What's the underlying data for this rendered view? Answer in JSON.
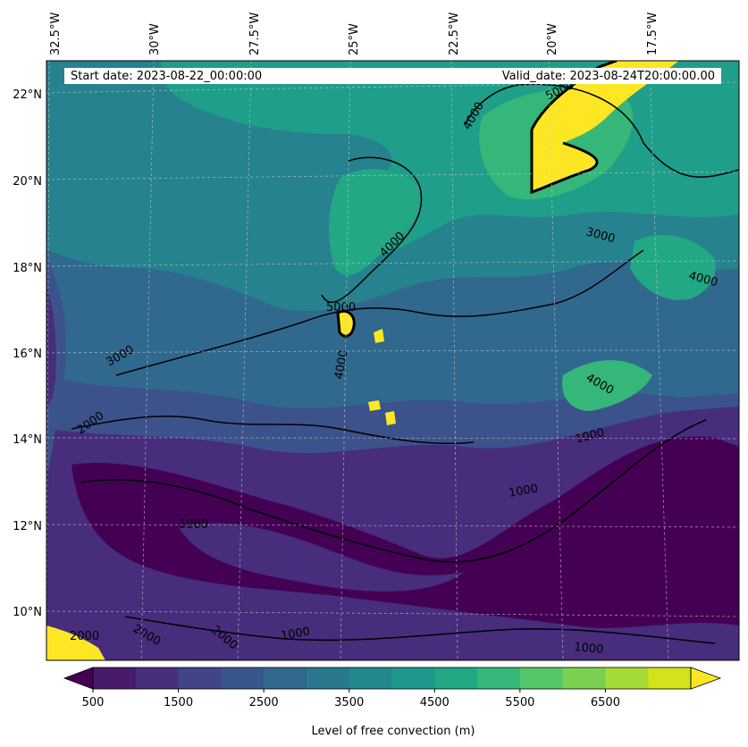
{
  "header": {
    "start_date": "Start date: 2023-08-22_00:00:00",
    "valid_date": "Valid_date: 2023-08-24T20:00:00.00"
  },
  "axes": {
    "longitude_labels": [
      "32.5°W",
      "30°W",
      "27.5°W",
      "25°W",
      "22.5°W",
      "20°W",
      "17.5°W"
    ],
    "latitude_labels": [
      "22°N",
      "20°N",
      "18°N",
      "16°N",
      "14°N",
      "12°N",
      "10°N"
    ]
  },
  "contour_labels": [
    "5000",
    "4000",
    "3000",
    "2000",
    "1000"
  ],
  "colorbar": {
    "label": "Level of free convection (m)",
    "tick_labels": [
      "500",
      "1500",
      "2500",
      "3500",
      "4500",
      "5500",
      "6500"
    ],
    "levels": [
      500,
      1000,
      1500,
      2000,
      2500,
      3000,
      3500,
      4000,
      4500,
      5000,
      5500,
      6000,
      6500,
      7000
    ],
    "colors": [
      "#440154",
      "#481a6c",
      "#472f7d",
      "#414487",
      "#39568c",
      "#31688e",
      "#2a788e",
      "#23888e",
      "#1f988b",
      "#22a884",
      "#35b779",
      "#54c568",
      "#7ad151",
      "#a5db36",
      "#d2e21b",
      "#fde725"
    ]
  }
}
